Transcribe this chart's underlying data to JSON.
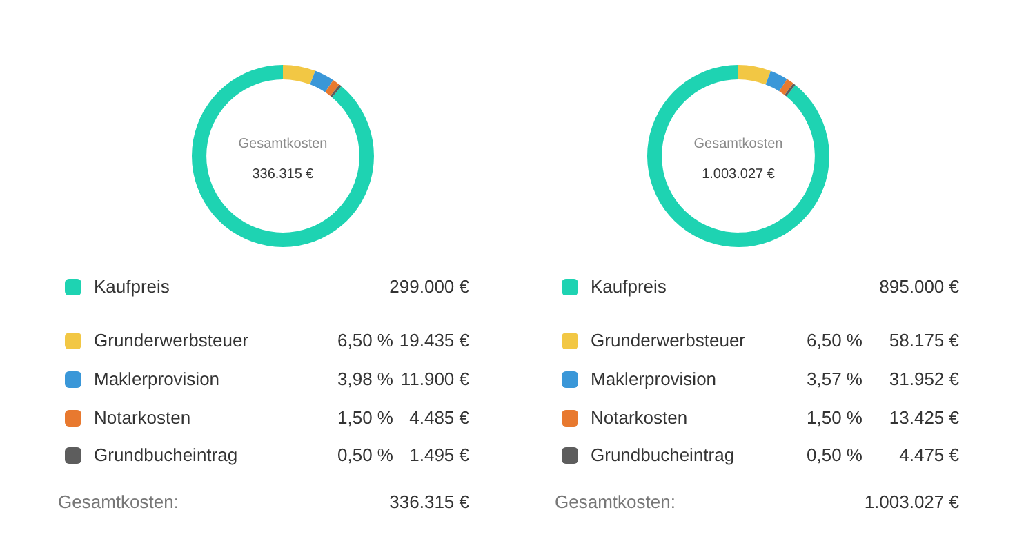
{
  "chart_data": [
    {
      "type": "donut",
      "title": "Gesamtkosten",
      "categories": [
        "Kaufpreis",
        "Grunderwerbsteuer",
        "Maklerprovision",
        "Notarkosten",
        "Grundbucheintrag"
      ],
      "values": [
        299000,
        19435,
        11900,
        4485,
        1495
      ],
      "colors": [
        "#1ed3b2",
        "#f2c744",
        "#3a97d8",
        "#e8792f",
        "#5d5d5d"
      ],
      "value_labels": [
        "299.000 €",
        "19.435 €",
        "11.900 €",
        "4.485 €",
        "1.495 €"
      ],
      "annotations": [
        "6,50 %",
        "3,98 %",
        "1,50 %",
        "0,50 %",
        "Gesamtkosten:"
      ],
      "totals": [
        "336.315 €"
      ],
      "legend": "bottom"
    },
    {
      "type": "donut",
      "title": "Gesamtkosten",
      "categories": [
        "Kaufpreis",
        "Grunderwerbsteuer",
        "Maklerprovision",
        "Notarkosten",
        "Grundbucheintrag"
      ],
      "values": [
        895000,
        58175,
        31952,
        13425,
        4475
      ],
      "colors": [
        "#1ed3b2",
        "#f2c744",
        "#3a97d8",
        "#e8792f",
        "#5d5d5d"
      ],
      "value_labels": [
        "895.000 €",
        "58.175 €",
        "31.952 €",
        "13.425 €",
        "4.475 €"
      ],
      "annotations": [
        "6,50 %",
        "3,57 %",
        "1,50 %",
        "0,50 %",
        "Gesamtkosten:"
      ],
      "totals": [
        "1.003.027 €"
      ],
      "legend": "bottom"
    }
  ]
}
